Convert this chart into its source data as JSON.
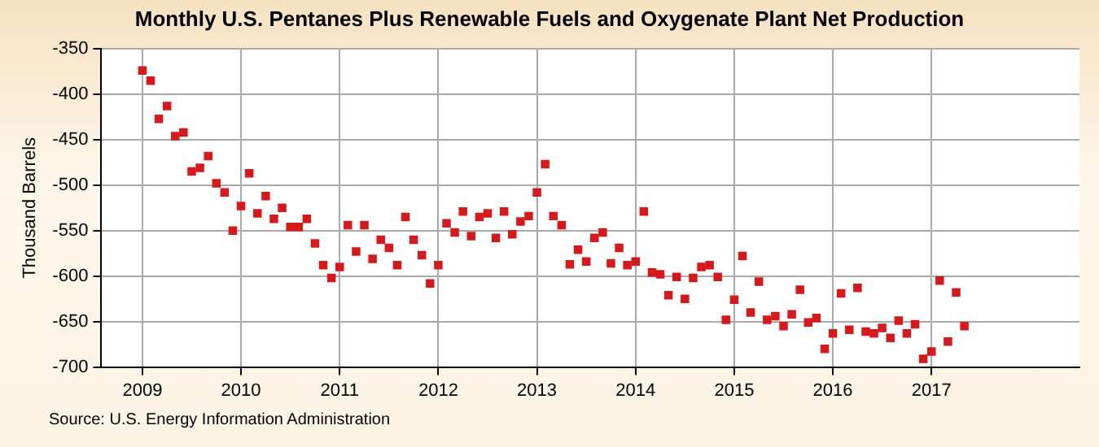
{
  "chart_data": {
    "type": "scatter",
    "title": "Monthly U.S. Pentanes Plus Renewable Fuels and Oxygenate Plant Net Production",
    "ylabel": "Thousand Barrels",
    "annotations": [
      "Source: U.S. Energy Information Administration"
    ],
    "x": [
      "2009-01",
      "2009-02",
      "2009-03",
      "2009-04",
      "2009-05",
      "2009-06",
      "2009-07",
      "2009-08",
      "2009-09",
      "2009-10",
      "2009-11",
      "2009-12",
      "2010-01",
      "2010-02",
      "2010-03",
      "2010-04",
      "2010-05",
      "2010-06",
      "2010-07",
      "2010-08",
      "2010-09",
      "2010-10",
      "2010-11",
      "2010-12",
      "2011-01",
      "2011-02",
      "2011-03",
      "2011-04",
      "2011-05",
      "2011-06",
      "2011-07",
      "2011-08",
      "2011-09",
      "2011-10",
      "2011-11",
      "2011-12",
      "2012-01",
      "2012-02",
      "2012-03",
      "2012-04",
      "2012-05",
      "2012-06",
      "2012-07",
      "2012-08",
      "2012-09",
      "2012-10",
      "2012-11",
      "2012-12",
      "2013-01",
      "2013-02",
      "2013-03",
      "2013-04",
      "2013-05",
      "2013-06",
      "2013-07",
      "2013-08",
      "2013-09",
      "2013-10",
      "2013-11",
      "2013-12",
      "2014-01",
      "2014-02",
      "2014-03",
      "2014-04",
      "2014-05",
      "2014-06",
      "2014-07",
      "2014-08",
      "2014-09",
      "2014-10",
      "2014-11",
      "2014-12",
      "2015-01",
      "2015-02",
      "2015-03",
      "2015-04",
      "2015-05",
      "2015-06",
      "2015-07",
      "2015-08",
      "2015-09",
      "2015-10",
      "2015-11",
      "2015-12",
      "2016-01",
      "2016-02",
      "2016-03",
      "2016-04",
      "2016-05",
      "2016-06",
      "2016-07",
      "2016-08",
      "2016-09",
      "2016-10",
      "2016-11",
      "2016-12",
      "2017-01",
      "2017-02",
      "2017-03",
      "2017-04",
      "2017-05"
    ],
    "series": [
      {
        "color": "#d7191c",
        "values": [
          -374,
          -385,
          -427,
          -413,
          -446,
          -442,
          -485,
          -481,
          -468,
          -498,
          -508,
          -550,
          -523,
          -487,
          -531,
          -512,
          -537,
          -525,
          -546,
          -546,
          -537,
          -564,
          -588,
          -602,
          -590,
          -544,
          -573,
          -544,
          -581,
          -560,
          -569,
          -588,
          -535,
          -560,
          -577,
          -608,
          -588,
          -542,
          -552,
          -529,
          -556,
          -535,
          -531,
          -558,
          -529,
          -554,
          -540,
          -534,
          -508,
          -477,
          -534,
          -544,
          -587,
          -571,
          -584,
          -558,
          -552,
          -586,
          -569,
          -588,
          -584,
          -529,
          -596,
          -598,
          -621,
          -601,
          -625,
          -602,
          -590,
          -588,
          -601,
          -648,
          -626,
          -578,
          -640,
          -606,
          -648,
          -644,
          -655,
          -642,
          -615,
          -651,
          -646,
          -680,
          -663,
          -619,
          -659,
          -613,
          -661,
          -663,
          -657,
          -668,
          -649,
          -663,
          -653,
          -691,
          -683,
          -605,
          -672,
          -618,
          -655
        ]
      }
    ],
    "xlim": [
      "2008-08",
      "2018-07"
    ],
    "xticks": [
      "2009",
      "2010",
      "2011",
      "2012",
      "2013",
      "2014",
      "2015",
      "2016",
      "2017"
    ],
    "ylim": [
      -700,
      -350
    ],
    "yticks": [
      -700,
      -650,
      -600,
      -550,
      -500,
      -450,
      -400,
      -350
    ],
    "grid": true,
    "marker": "square",
    "legend": false
  }
}
